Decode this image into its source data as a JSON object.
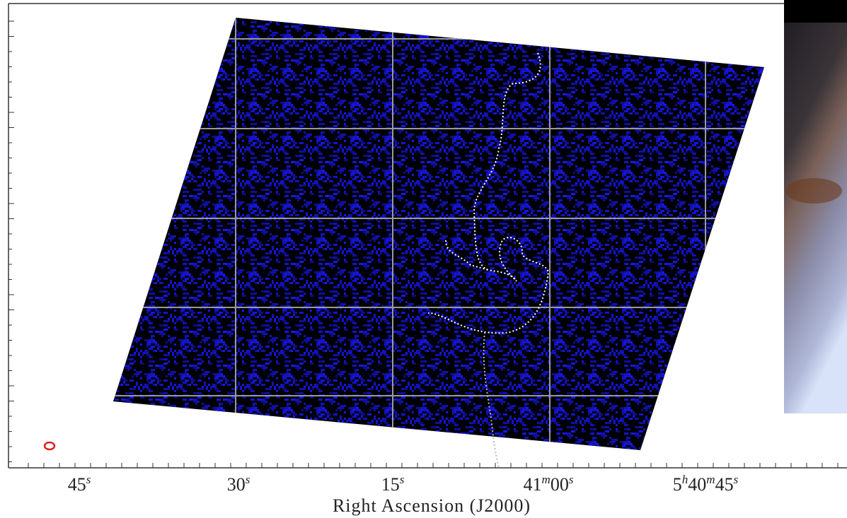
{
  "x_axis": {
    "label": "Right Ascension (J2000)",
    "ticks": [
      {
        "parts": [
          "45",
          "s"
        ]
      },
      {
        "parts": [
          "30",
          "s"
        ]
      },
      {
        "parts": [
          "15",
          "s"
        ]
      },
      {
        "parts": [
          "41",
          "m",
          "00",
          "s"
        ]
      },
      {
        "parts": [
          "5",
          "h",
          "40",
          "m",
          "45",
          "s"
        ]
      }
    ]
  }
}
